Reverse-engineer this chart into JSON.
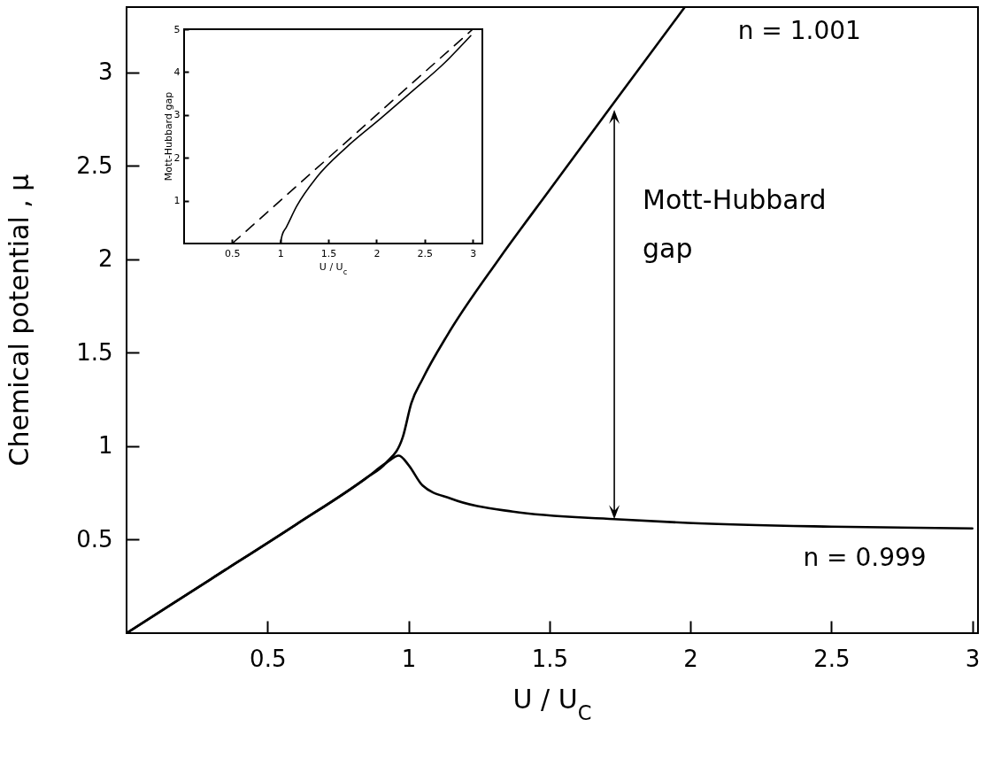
{
  "chart_data": [
    {
      "type": "line",
      "xlabel": "U / U$_{C}$",
      "ylabel": "Chemical potential , μ",
      "xlim": [
        0,
        3.02
      ],
      "ylim": [
        0,
        3.35
      ],
      "xticks": [
        0.5,
        1,
        1.5,
        2,
        2.5,
        3
      ],
      "yticks": [
        0.5,
        1,
        1.5,
        2,
        2.5,
        3
      ],
      "marker": "none",
      "series": [
        {
          "name": "n = 1.001",
          "color": "#000000",
          "x": [
            0,
            0.3,
            0.6,
            0.85,
            0.92,
            0.98,
            1.01,
            1.05,
            1.14,
            1.32,
            1.5,
            1.71,
            1.98
          ],
          "values": [
            0,
            0.29,
            0.58,
            0.83,
            0.91,
            1.05,
            1.23,
            1.36,
            1.6,
            2.0,
            2.37,
            2.8,
            3.35
          ]
        },
        {
          "name": "n = 0.999",
          "color": "#000000",
          "x": [
            0,
            0.3,
            0.6,
            0.85,
            0.92,
            0.966,
            1.0,
            1.05,
            1.15,
            1.37,
            1.73,
            1.99,
            2.5,
            3.0
          ],
          "values": [
            0,
            0.29,
            0.58,
            0.83,
            0.91,
            0.95,
            0.9,
            0.79,
            0.72,
            0.65,
            0.61,
            0.59,
            0.57,
            0.56
          ]
        }
      ],
      "annotations": [
        {
          "text": "Mott-Hubbard gap",
          "x": 1.73,
          "y": 2.8
        }
      ]
    },
    {
      "type": "line",
      "xlabel": "U / U$_{c}$",
      "ylabel": "Mott-Hubbard gap",
      "xlim": [
        0,
        3.1
      ],
      "ylim": [
        0,
        5
      ],
      "xticks": [
        0.5,
        1,
        1.5,
        2,
        2.5,
        3
      ],
      "yticks": [
        1,
        2,
        3,
        4,
        5
      ],
      "marker": "none",
      "series": [
        {
          "color": "#000000",
          "line_style": "dashed",
          "x": [
            0.5,
            3
          ],
          "values": [
            0,
            5
          ]
        },
        {
          "color": "#000000",
          "line_style": "solid",
          "x": [
            1,
            1.02,
            1.06,
            1.17,
            1.38,
            1.68,
            2.05,
            2.37,
            2.7,
            2.98
          ],
          "values": [
            0,
            0.2,
            0.37,
            0.87,
            1.55,
            2.23,
            2.93,
            3.55,
            4.2,
            4.85
          ]
        }
      ]
    }
  ]
}
